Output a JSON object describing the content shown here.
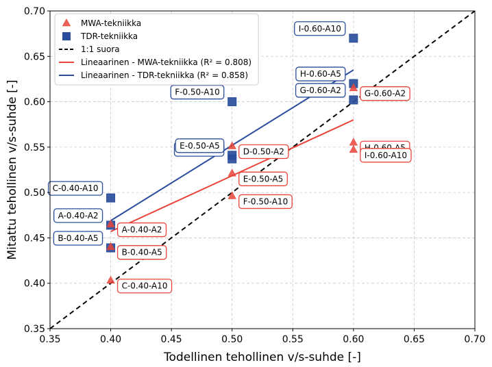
{
  "chart_data": {
    "type": "scatter",
    "xlabel": "Todellinen tehollinen v/s-suhde [-]",
    "ylabel": "Mitattu tehollinen v/s-suhde [-]",
    "xlim": [
      0.35,
      0.7
    ],
    "ylim": [
      0.35,
      0.7
    ],
    "xticks": [
      "0.35",
      "0.40",
      "0.45",
      "0.50",
      "0.55",
      "0.60",
      "0.65",
      "0.70"
    ],
    "yticks": [
      "0.35",
      "0.40",
      "0.45",
      "0.50",
      "0.55",
      "0.60",
      "0.65",
      "0.70"
    ],
    "grid": true,
    "legend_position": "top-left",
    "colors": {
      "mwa": "#e8443a",
      "tdr": "#2a4d9b",
      "diag": "#000000"
    },
    "series": [
      {
        "name": "MWA-tekniikka",
        "marker": "triangle",
        "points": [
          {
            "label": "A-0.40-A2",
            "x": 0.4,
            "y": 0.465
          },
          {
            "label": "B-0.40-A5",
            "x": 0.4,
            "y": 0.44
          },
          {
            "label": "C-0.40-A10",
            "x": 0.4,
            "y": 0.403
          },
          {
            "label": "D-0.50-A2",
            "x": 0.5,
            "y": 0.551
          },
          {
            "label": "E-0.50-A5",
            "x": 0.5,
            "y": 0.521
          },
          {
            "label": "F-0.50-A10",
            "x": 0.5,
            "y": 0.496
          },
          {
            "label": "G-0.60-A2",
            "x": 0.6,
            "y": 0.615
          },
          {
            "label": "H-0.60-A5",
            "x": 0.6,
            "y": 0.555
          },
          {
            "label": "I-0.60-A10",
            "x": 0.6,
            "y": 0.547
          }
        ]
      },
      {
        "name": "TDR-tekniikka",
        "marker": "square",
        "points": [
          {
            "label": "A-0.40-A2",
            "x": 0.4,
            "y": 0.464
          },
          {
            "label": "B-0.40-A5",
            "x": 0.4,
            "y": 0.439
          },
          {
            "label": "C-0.40-A10",
            "x": 0.4,
            "y": 0.494
          },
          {
            "label": "D-0.50-A2",
            "x": 0.5,
            "y": 0.537
          },
          {
            "label": "E-0.50-A5",
            "x": 0.5,
            "y": 0.541
          },
          {
            "label": "F-0.50-A10",
            "x": 0.5,
            "y": 0.6
          },
          {
            "label": "G-0.60-A2",
            "x": 0.6,
            "y": 0.602
          },
          {
            "label": "H-0.60-A5",
            "x": 0.6,
            "y": 0.62
          },
          {
            "label": "I-0.60-A10",
            "x": 0.6,
            "y": 0.67
          }
        ]
      }
    ],
    "lines": [
      {
        "name": "1:1 suora",
        "style": "dashed",
        "x": [
          0.35,
          0.7
        ],
        "y": [
          0.35,
          0.7
        ]
      },
      {
        "name": "Lineaarinen - MWA-tekniikka (R² = 0.808)",
        "style": "solid",
        "x": [
          0.4,
          0.6
        ],
        "y": [
          0.457,
          0.58
        ]
      },
      {
        "name": "Lineaarinen - TDR-tekniikka (R² = 0.858)",
        "style": "solid",
        "x": [
          0.4,
          0.6
        ],
        "y": [
          0.469,
          0.635
        ]
      }
    ],
    "legend": [
      "MWA-tekniikka",
      "TDR-tekniikka",
      "1:1 suora",
      "Lineaarinen - MWA-tekniikka (R² = 0.808)",
      "Lineaarinen - TDR-tekniikka (R² = 0.858)"
    ]
  }
}
